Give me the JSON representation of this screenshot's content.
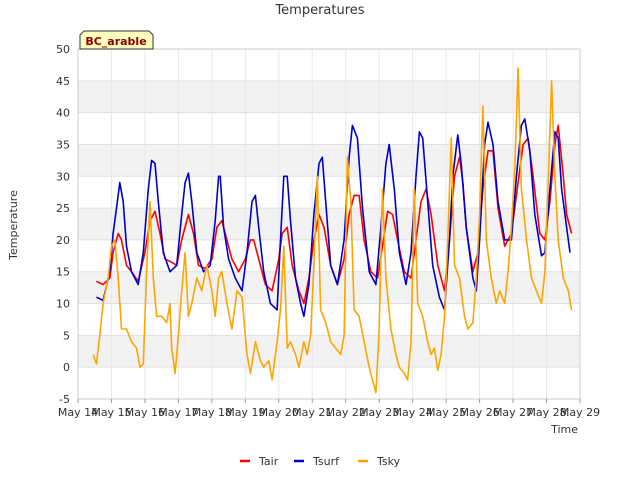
{
  "chart_data": {
    "type": "line",
    "title": "Temperatures",
    "xlabel": "Time",
    "ylabel": "Temperature",
    "badge": "BC_arable",
    "ylim": [
      -5,
      50
    ],
    "yticks": [
      -5,
      0,
      5,
      10,
      15,
      20,
      25,
      30,
      35,
      40,
      45,
      50
    ],
    "xlim": [
      14,
      29
    ],
    "xticks": [
      {
        "x": 14,
        "label": "May 14"
      },
      {
        "x": 15,
        "label": "May 15"
      },
      {
        "x": 16,
        "label": "May 16"
      },
      {
        "x": 17,
        "label": "May 17"
      },
      {
        "x": 18,
        "label": "May 18"
      },
      {
        "x": 19,
        "label": "May 19"
      },
      {
        "x": 20,
        "label": "May 20"
      },
      {
        "x": 21,
        "label": "May 21"
      },
      {
        "x": 22,
        "label": "May 22"
      },
      {
        "x": 23,
        "label": "May 23"
      },
      {
        "x": 24,
        "label": "May 24"
      },
      {
        "x": 25,
        "label": "May 25"
      },
      {
        "x": 26,
        "label": "May 26"
      },
      {
        "x": 27,
        "label": "May 27"
      },
      {
        "x": 28,
        "label": "May 28"
      },
      {
        "x": 29,
        "label": "May 29"
      }
    ],
    "grid": true,
    "legend_position": "bottom",
    "series": [
      {
        "name": "Tair",
        "color": "#ff0000",
        "points": [
          [
            14.55,
            13.5
          ],
          [
            14.75,
            13
          ],
          [
            14.95,
            14
          ],
          [
            15.05,
            18
          ],
          [
            15.2,
            21
          ],
          [
            15.3,
            20
          ],
          [
            15.45,
            16
          ],
          [
            15.6,
            15
          ],
          [
            15.8,
            13.5
          ],
          [
            16.0,
            18
          ],
          [
            16.15,
            23
          ],
          [
            16.3,
            24.5
          ],
          [
            16.45,
            21
          ],
          [
            16.6,
            17
          ],
          [
            16.8,
            16.5
          ],
          [
            16.95,
            16
          ],
          [
            17.1,
            20
          ],
          [
            17.3,
            24
          ],
          [
            17.45,
            21
          ],
          [
            17.6,
            16
          ],
          [
            17.8,
            15.5
          ],
          [
            18.0,
            17
          ],
          [
            18.15,
            22
          ],
          [
            18.3,
            23
          ],
          [
            18.45,
            20
          ],
          [
            18.6,
            17
          ],
          [
            18.8,
            15
          ],
          [
            19.0,
            17
          ],
          [
            19.15,
            20
          ],
          [
            19.25,
            20
          ],
          [
            19.4,
            17
          ],
          [
            19.6,
            13
          ],
          [
            19.8,
            12
          ],
          [
            20.0,
            17
          ],
          [
            20.1,
            21
          ],
          [
            20.25,
            22
          ],
          [
            20.4,
            16
          ],
          [
            20.6,
            12
          ],
          [
            20.75,
            10
          ],
          [
            20.9,
            14
          ],
          [
            21.05,
            20
          ],
          [
            21.2,
            24
          ],
          [
            21.35,
            22
          ],
          [
            21.55,
            16
          ],
          [
            21.75,
            13
          ],
          [
            21.95,
            17
          ],
          [
            22.1,
            24
          ],
          [
            22.25,
            27
          ],
          [
            22.4,
            27
          ],
          [
            22.55,
            20
          ],
          [
            22.75,
            15
          ],
          [
            22.95,
            14
          ],
          [
            23.1,
            19
          ],
          [
            23.25,
            24.5
          ],
          [
            23.4,
            24
          ],
          [
            23.55,
            20
          ],
          [
            23.75,
            15
          ],
          [
            23.95,
            14
          ],
          [
            24.1,
            20
          ],
          [
            24.25,
            26
          ],
          [
            24.4,
            28
          ],
          [
            24.55,
            24
          ],
          [
            24.75,
            16
          ],
          [
            24.95,
            12
          ],
          [
            25.1,
            20
          ],
          [
            25.25,
            30
          ],
          [
            25.4,
            33
          ],
          [
            25.5,
            29
          ],
          [
            25.6,
            22
          ],
          [
            25.8,
            15
          ],
          [
            25.95,
            18
          ],
          [
            26.1,
            28
          ],
          [
            26.25,
            34
          ],
          [
            26.4,
            34
          ],
          [
            26.55,
            25
          ],
          [
            26.75,
            19
          ],
          [
            26.95,
            21
          ],
          [
            27.1,
            27
          ],
          [
            27.3,
            35
          ],
          [
            27.45,
            36
          ],
          [
            27.6,
            30
          ],
          [
            27.8,
            21
          ],
          [
            27.95,
            20
          ],
          [
            28.1,
            26
          ],
          [
            28.25,
            35
          ],
          [
            28.35,
            38
          ],
          [
            28.5,
            30
          ],
          [
            28.6,
            24
          ],
          [
            28.75,
            21
          ]
        ]
      },
      {
        "name": "Tsurf",
        "color": "#0000cc",
        "points": [
          [
            14.55,
            11
          ],
          [
            14.75,
            10.5
          ],
          [
            14.95,
            15
          ],
          [
            15.05,
            21
          ],
          [
            15.15,
            25
          ],
          [
            15.25,
            29
          ],
          [
            15.35,
            26
          ],
          [
            15.45,
            19
          ],
          [
            15.6,
            15
          ],
          [
            15.8,
            13
          ],
          [
            15.95,
            18
          ],
          [
            16.1,
            28
          ],
          [
            16.2,
            32.5
          ],
          [
            16.3,
            32
          ],
          [
            16.4,
            26
          ],
          [
            16.55,
            18
          ],
          [
            16.75,
            15
          ],
          [
            16.95,
            16
          ],
          [
            17.1,
            24
          ],
          [
            17.2,
            29
          ],
          [
            17.3,
            30.5
          ],
          [
            17.4,
            26
          ],
          [
            17.55,
            18
          ],
          [
            17.75,
            15
          ],
          [
            17.95,
            16
          ],
          [
            18.1,
            23
          ],
          [
            18.2,
            30
          ],
          [
            18.25,
            30
          ],
          [
            18.35,
            22
          ],
          [
            18.5,
            17
          ],
          [
            18.7,
            14
          ],
          [
            18.9,
            12
          ],
          [
            19.05,
            18
          ],
          [
            19.2,
            26
          ],
          [
            19.3,
            27
          ],
          [
            19.4,
            22
          ],
          [
            19.55,
            15
          ],
          [
            19.75,
            10
          ],
          [
            19.95,
            9
          ],
          [
            20.05,
            20
          ],
          [
            20.15,
            30
          ],
          [
            20.25,
            30
          ],
          [
            20.35,
            23
          ],
          [
            20.5,
            14
          ],
          [
            20.65,
            10
          ],
          [
            20.75,
            8
          ],
          [
            20.9,
            13
          ],
          [
            21.05,
            24
          ],
          [
            21.2,
            32
          ],
          [
            21.3,
            33
          ],
          [
            21.4,
            26
          ],
          [
            21.55,
            16
          ],
          [
            21.75,
            13
          ],
          [
            21.95,
            20
          ],
          [
            22.1,
            33
          ],
          [
            22.2,
            38
          ],
          [
            22.35,
            36
          ],
          [
            22.5,
            25
          ],
          [
            22.7,
            15
          ],
          [
            22.9,
            13
          ],
          [
            23.05,
            22
          ],
          [
            23.2,
            32
          ],
          [
            23.3,
            35
          ],
          [
            23.45,
            28
          ],
          [
            23.6,
            18
          ],
          [
            23.8,
            13
          ],
          [
            23.95,
            18
          ],
          [
            24.1,
            30
          ],
          [
            24.2,
            37
          ],
          [
            24.3,
            36
          ],
          [
            24.45,
            26
          ],
          [
            24.6,
            16
          ],
          [
            24.8,
            11
          ],
          [
            24.95,
            9
          ],
          [
            25.1,
            20
          ],
          [
            25.2,
            30
          ],
          [
            25.35,
            36.5
          ],
          [
            25.45,
            32
          ],
          [
            25.6,
            22
          ],
          [
            25.8,
            14
          ],
          [
            25.9,
            12
          ],
          [
            26.0,
            20
          ],
          [
            26.15,
            35
          ],
          [
            26.25,
            38.5
          ],
          [
            26.4,
            35
          ],
          [
            26.55,
            26
          ],
          [
            26.75,
            20
          ],
          [
            26.95,
            20
          ],
          [
            27.1,
            30
          ],
          [
            27.25,
            38
          ],
          [
            27.35,
            39
          ],
          [
            27.5,
            34
          ],
          [
            27.65,
            24
          ],
          [
            27.85,
            17.5
          ],
          [
            27.95,
            18
          ],
          [
            28.1,
            28
          ],
          [
            28.25,
            37
          ],
          [
            28.35,
            36
          ],
          [
            28.45,
            28
          ],
          [
            28.6,
            22
          ],
          [
            28.7,
            18
          ]
        ]
      },
      {
        "name": "Tsky",
        "color": "#ffa500",
        "points": [
          [
            14.45,
            2
          ],
          [
            14.55,
            0.5
          ],
          [
            14.65,
            5
          ],
          [
            14.75,
            10
          ],
          [
            14.9,
            14
          ],
          [
            15.0,
            19
          ],
          [
            15.1,
            20
          ],
          [
            15.2,
            14
          ],
          [
            15.3,
            6
          ],
          [
            15.45,
            6
          ],
          [
            15.6,
            4
          ],
          [
            15.75,
            3
          ],
          [
            15.85,
            0
          ],
          [
            15.95,
            0.5
          ],
          [
            16.05,
            15
          ],
          [
            16.15,
            26
          ],
          [
            16.25,
            14
          ],
          [
            16.35,
            8
          ],
          [
            16.5,
            8
          ],
          [
            16.65,
            7
          ],
          [
            16.75,
            10
          ],
          [
            16.8,
            3
          ],
          [
            16.9,
            -1
          ],
          [
            17.0,
            5
          ],
          [
            17.1,
            12
          ],
          [
            17.2,
            18
          ],
          [
            17.3,
            8
          ],
          [
            17.4,
            10
          ],
          [
            17.55,
            14
          ],
          [
            17.7,
            12
          ],
          [
            17.85,
            16
          ],
          [
            18.0,
            12
          ],
          [
            18.1,
            8
          ],
          [
            18.2,
            14
          ],
          [
            18.3,
            15
          ],
          [
            18.45,
            10
          ],
          [
            18.6,
            6
          ],
          [
            18.75,
            12
          ],
          [
            18.9,
            11
          ],
          [
            19.05,
            2
          ],
          [
            19.15,
            -1
          ],
          [
            19.3,
            4
          ],
          [
            19.45,
            1
          ],
          [
            19.55,
            0
          ],
          [
            19.7,
            1
          ],
          [
            19.8,
            -2
          ],
          [
            19.95,
            4
          ],
          [
            20.05,
            9
          ],
          [
            20.15,
            19
          ],
          [
            20.25,
            3
          ],
          [
            20.35,
            4
          ],
          [
            20.5,
            2
          ],
          [
            20.6,
            0
          ],
          [
            20.75,
            4
          ],
          [
            20.85,
            2
          ],
          [
            20.95,
            5
          ],
          [
            21.05,
            16
          ],
          [
            21.15,
            30
          ],
          [
            21.25,
            9
          ],
          [
            21.4,
            7
          ],
          [
            21.55,
            4
          ],
          [
            21.7,
            3
          ],
          [
            21.85,
            2
          ],
          [
            21.95,
            5
          ],
          [
            22.05,
            33
          ],
          [
            22.15,
            26
          ],
          [
            22.25,
            9
          ],
          [
            22.4,
            8
          ],
          [
            22.55,
            4
          ],
          [
            22.7,
            0
          ],
          [
            22.8,
            -2
          ],
          [
            22.9,
            -4
          ],
          [
            23.0,
            6
          ],
          [
            23.1,
            28
          ],
          [
            23.2,
            14
          ],
          [
            23.35,
            6
          ],
          [
            23.5,
            2
          ],
          [
            23.6,
            0
          ],
          [
            23.75,
            -1
          ],
          [
            23.85,
            -2
          ],
          [
            23.95,
            4
          ],
          [
            24.05,
            28
          ],
          [
            24.15,
            10
          ],
          [
            24.3,
            8
          ],
          [
            24.45,
            4
          ],
          [
            24.55,
            2
          ],
          [
            24.65,
            3
          ],
          [
            24.75,
            -0.5
          ],
          [
            24.85,
            2
          ],
          [
            24.95,
            8
          ],
          [
            25.05,
            20
          ],
          [
            25.15,
            36
          ],
          [
            25.25,
            16
          ],
          [
            25.4,
            14
          ],
          [
            25.55,
            8
          ],
          [
            25.65,
            6
          ],
          [
            25.8,
            7
          ],
          [
            25.9,
            14
          ],
          [
            26.0,
            24
          ],
          [
            26.1,
            41
          ],
          [
            26.2,
            20
          ],
          [
            26.35,
            14
          ],
          [
            26.5,
            10
          ],
          [
            26.6,
            12
          ],
          [
            26.75,
            10
          ],
          [
            26.85,
            15
          ],
          [
            26.95,
            22
          ],
          [
            27.05,
            31
          ],
          [
            27.15,
            47
          ],
          [
            27.25,
            28
          ],
          [
            27.4,
            20
          ],
          [
            27.55,
            14
          ],
          [
            27.7,
            12
          ],
          [
            27.85,
            10
          ],
          [
            27.95,
            15
          ],
          [
            28.05,
            29
          ],
          [
            28.15,
            45
          ],
          [
            28.25,
            30
          ],
          [
            28.35,
            20
          ],
          [
            28.5,
            14
          ],
          [
            28.65,
            12
          ],
          [
            28.75,
            9
          ]
        ]
      }
    ]
  }
}
